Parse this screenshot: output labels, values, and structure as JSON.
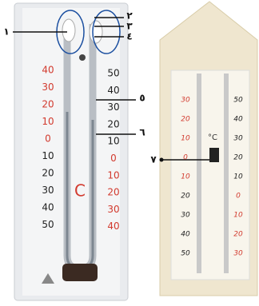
{
  "left_thermometer": {
    "unit": "C",
    "left_scale": [
      "40",
      "30",
      "20",
      "10",
      "0",
      "10",
      "20",
      "30",
      "40",
      "50"
    ],
    "right_scale": [
      "50",
      "40",
      "30",
      "20",
      "10",
      "0",
      "10",
      "20",
      "30",
      "40"
    ]
  },
  "right_thermometer": {
    "unit": "°C",
    "left_scale": [
      "30",
      "20",
      "10",
      "0",
      "10",
      "20",
      "30",
      "40",
      "50"
    ],
    "right_scale": [
      "50",
      "40",
      "30",
      "20",
      "10",
      "0",
      "10",
      "20",
      "30"
    ]
  },
  "labels": [
    "١",
    "٢",
    "٣",
    "٤",
    "٥",
    "٦",
    "٧"
  ]
}
